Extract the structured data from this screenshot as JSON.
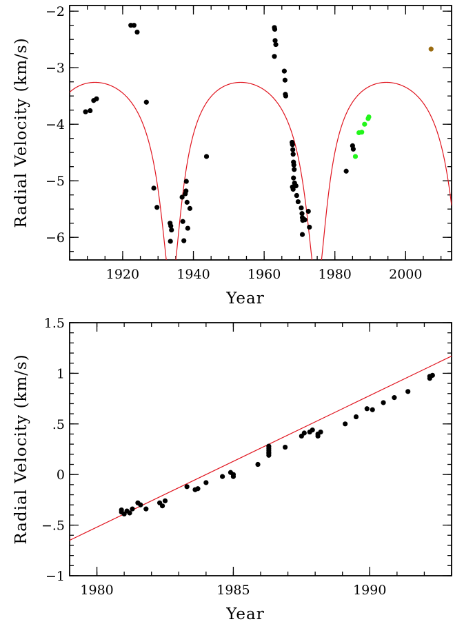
{
  "figure_colors": {
    "model_line": "#e0141e",
    "data_point": "#000000",
    "green_point": "#22f51a",
    "olive_point": "#9a6b10"
  },
  "chart_data": [
    {
      "type": "scatter",
      "title": "",
      "xlabel": "Year",
      "ylabel": "Radial Velocity (km/s)",
      "xlim": [
        1905,
        2013
      ],
      "ylim": [
        -6.4,
        -1.9
      ],
      "x_ticks": [
        1920,
        1940,
        1960,
        1980,
        2000
      ],
      "x_tick_labels": [
        "1920",
        "1940",
        "1960",
        "1980",
        "2000"
      ],
      "y_ticks": [
        -2,
        -3,
        -4,
        -5,
        -6
      ],
      "y_tick_labels": [
        "−2",
        "−3",
        "−4",
        "−5",
        "−6"
      ],
      "grid": false,
      "legend": "none",
      "series": [
        {
          "color": "#000000",
          "points": [
            [
              1909.5,
              -3.78
            ],
            [
              1910.8,
              -3.76
            ],
            [
              1911.8,
              -3.58
            ],
            [
              1912.6,
              -3.55
            ],
            [
              1922.3,
              -2.25
            ],
            [
              1923.2,
              -2.25
            ],
            [
              1924.1,
              -2.37
            ],
            [
              1926.7,
              -3.61
            ],
            [
              1928.8,
              -5.13
            ],
            [
              1929.7,
              -5.47
            ],
            [
              1933.4,
              -5.75
            ],
            [
              1933.6,
              -5.8
            ],
            [
              1933.8,
              -5.87
            ],
            [
              1933.5,
              -6.07
            ],
            [
              1936.8,
              -5.29
            ],
            [
              1937.0,
              -5.72
            ],
            [
              1937.3,
              -6.06
            ],
            [
              1937.7,
              -5.23
            ],
            [
              1937.9,
              -5.18
            ],
            [
              1938.0,
              -5.01
            ],
            [
              1938.2,
              -5.38
            ],
            [
              1938.4,
              -5.84
            ],
            [
              1939.0,
              -5.49
            ],
            [
              1943.7,
              -4.57
            ],
            [
              1962.9,
              -2.29
            ],
            [
              1963.0,
              -2.32
            ],
            [
              1963.1,
              -2.52
            ],
            [
              1963.3,
              -2.59
            ],
            [
              1962.9,
              -2.8
            ],
            [
              1965.7,
              -3.06
            ],
            [
              1965.9,
              -3.22
            ],
            [
              1966.0,
              -3.47
            ],
            [
              1966.1,
              -3.5
            ],
            [
              1967.9,
              -4.32
            ],
            [
              1968.0,
              -4.36
            ],
            [
              1968.1,
              -4.45
            ],
            [
              1968.2,
              -4.53
            ],
            [
              1968.3,
              -4.67
            ],
            [
              1968.4,
              -4.72
            ],
            [
              1968.5,
              -4.8
            ],
            [
              1968.3,
              -4.95
            ],
            [
              1968.6,
              -5.04
            ],
            [
              1968.0,
              -5.11
            ],
            [
              1968.2,
              -5.15
            ],
            [
              1969.0,
              -5.09
            ],
            [
              1969.2,
              -5.26
            ],
            [
              1969.6,
              -5.37
            ],
            [
              1970.5,
              -5.48
            ],
            [
              1970.7,
              -5.58
            ],
            [
              1970.8,
              -5.65
            ],
            [
              1970.9,
              -5.7
            ],
            [
              1971.5,
              -5.69
            ],
            [
              1972.5,
              -5.54
            ],
            [
              1972.8,
              -5.82
            ],
            [
              1970.8,
              -5.95
            ],
            [
              1983.2,
              -4.83
            ],
            [
              1985.0,
              -4.38
            ],
            [
              1985.2,
              -4.44
            ]
          ]
        },
        {
          "color": "#22f51a",
          "points": [
            [
              1985.8,
              -4.57
            ],
            [
              1986.8,
              -4.15
            ],
            [
              1987.6,
              -4.14
            ],
            [
              1988.4,
              -4.0
            ],
            [
              1989.4,
              -3.9
            ],
            [
              1989.6,
              -3.87
            ]
          ]
        },
        {
          "color": "#9a6b10",
          "points": [
            [
              2007.2,
              -2.67
            ]
          ]
        }
      ]
    },
    {
      "type": "scatter",
      "title": "",
      "xlabel": "Year",
      "ylabel": "Radial Velocity (km/s)",
      "xlim": [
        1979,
        1993
      ],
      "ylim": [
        -1,
        1.5
      ],
      "x_ticks": [
        1980,
        1985,
        1990
      ],
      "x_tick_labels": [
        "1980",
        "1985",
        "1990"
      ],
      "y_ticks": [
        1.5,
        1,
        0.5,
        0,
        -0.5,
        -1
      ],
      "y_tick_labels": [
        "1.5",
        "1",
        ".5",
        "0",
        "−.5",
        "−1"
      ],
      "grid": false,
      "legend": "none",
      "trend_line": {
        "x": [
          1979,
          1993
        ],
        "y": [
          -0.65,
          1.17
        ]
      },
      "series": [
        {
          "color": "#000000",
          "points": [
            [
              1980.9,
              -0.35
            ],
            [
              1980.9,
              -0.37
            ],
            [
              1981.0,
              -0.39
            ],
            [
              1981.1,
              -0.36
            ],
            [
              1981.2,
              -0.38
            ],
            [
              1981.3,
              -0.34
            ],
            [
              1981.5,
              -0.28
            ],
            [
              1981.6,
              -0.3
            ],
            [
              1981.8,
              -0.34
            ],
            [
              1982.3,
              -0.28
            ],
            [
              1982.4,
              -0.31
            ],
            [
              1982.5,
              -0.26
            ],
            [
              1983.3,
              -0.12
            ],
            [
              1983.6,
              -0.15
            ],
            [
              1983.7,
              -0.14
            ],
            [
              1984.0,
              -0.08
            ],
            [
              1984.6,
              -0.02
            ],
            [
              1984.9,
              0.02
            ],
            [
              1985.0,
              -0.02
            ],
            [
              1985.0,
              0.0
            ],
            [
              1985.9,
              0.1
            ],
            [
              1986.3,
              0.19
            ],
            [
              1986.3,
              0.21
            ],
            [
              1986.3,
              0.24
            ],
            [
              1986.3,
              0.26
            ],
            [
              1986.3,
              0.28
            ],
            [
              1986.3,
              0.22
            ],
            [
              1986.9,
              0.27
            ],
            [
              1987.5,
              0.38
            ],
            [
              1987.6,
              0.41
            ],
            [
              1987.8,
              0.42
            ],
            [
              1987.9,
              0.44
            ],
            [
              1988.1,
              0.38
            ],
            [
              1988.1,
              0.4
            ],
            [
              1988.2,
              0.42
            ],
            [
              1989.1,
              0.5
            ],
            [
              1989.5,
              0.57
            ],
            [
              1989.9,
              0.65
            ],
            [
              1990.1,
              0.64
            ],
            [
              1990.5,
              0.71
            ],
            [
              1990.9,
              0.76
            ],
            [
              1991.4,
              0.82
            ],
            [
              1992.2,
              0.95
            ],
            [
              1992.2,
              0.97
            ],
            [
              1992.3,
              0.98
            ]
          ]
        }
      ]
    }
  ]
}
